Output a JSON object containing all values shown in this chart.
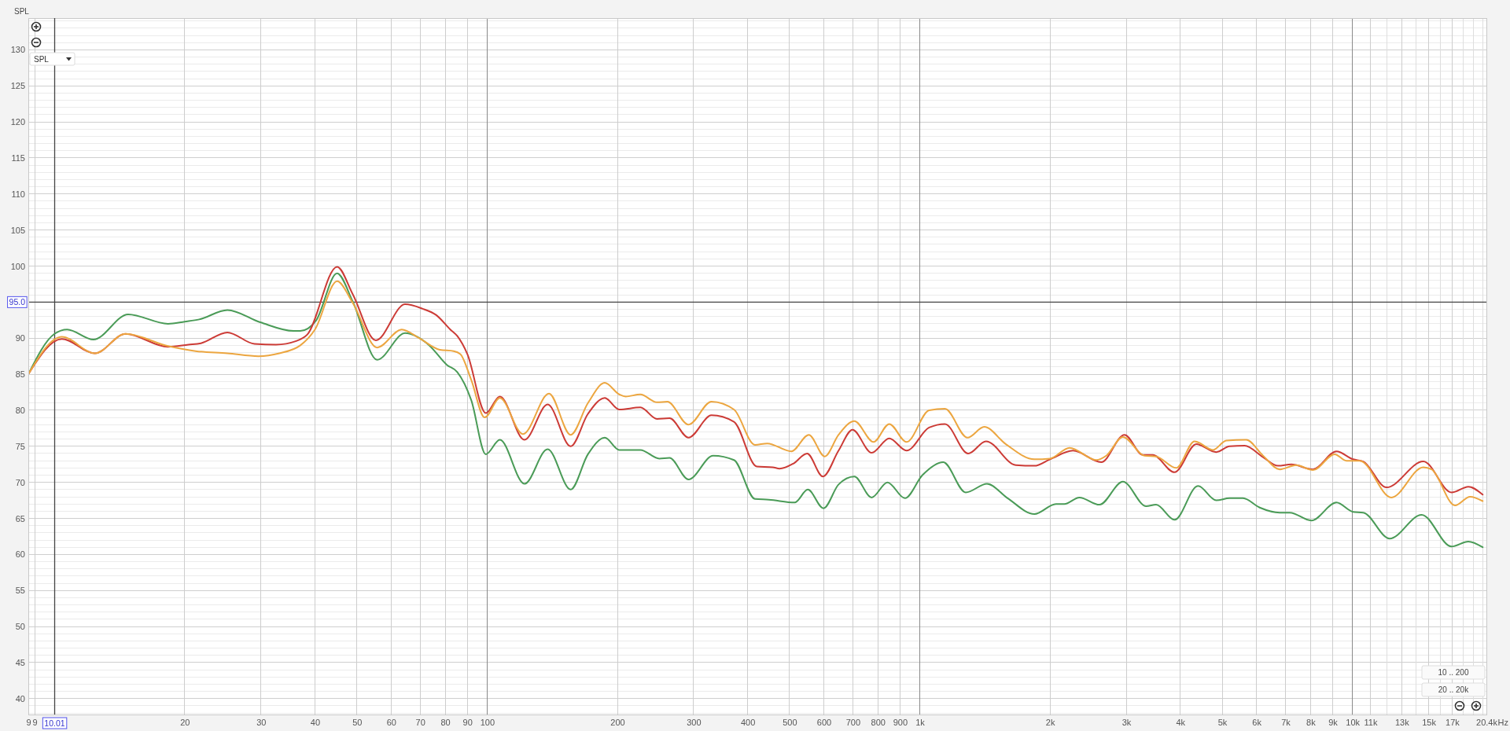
{
  "chart_data": {
    "type": "line",
    "ylabel": "SPL",
    "xlabel": "Hz",
    "log": "x",
    "grid": true,
    "xlim": [
      8.7,
      20400
    ],
    "ylim": [
      37.8,
      134.4
    ],
    "xticks": [
      {
        "value": 8.7,
        "label": "9"
      },
      9,
      20,
      30,
      40,
      50,
      60,
      70,
      80,
      90,
      100,
      200,
      300,
      400,
      500,
      600,
      700,
      800,
      900,
      {
        "value": 1000,
        "label": "1k"
      },
      {
        "value": 2000,
        "label": "2k"
      },
      {
        "value": 3000,
        "label": "3k"
      },
      {
        "value": 4000,
        "label": "4k"
      },
      {
        "value": 5000,
        "label": "5k"
      },
      {
        "value": 6000,
        "label": "6k"
      },
      {
        "value": 7000,
        "label": "7k"
      },
      {
        "value": 8000,
        "label": "8k"
      },
      {
        "value": 9000,
        "label": "9k"
      },
      {
        "value": 10000,
        "label": "10k"
      },
      {
        "value": 11000,
        "label": "11k"
      },
      {
        "value": 12000,
        "label": null
      },
      {
        "value": 13000,
        "label": "13k"
      },
      {
        "value": 14000,
        "label": null
      },
      {
        "value": 15000,
        "label": "15k"
      },
      {
        "value": 16000,
        "label": null
      },
      {
        "value": 17000,
        "label": "17k"
      },
      {
        "value": 18000,
        "label": null
      },
      {
        "value": 19000,
        "label": null
      },
      {
        "value": 20000,
        "label": null
      },
      {
        "value": 20400,
        "label": "20.4k"
      }
    ],
    "yticks": [
      {
        "value": 38,
        "label": null
      },
      {
        "value": 39,
        "label": null
      },
      40,
      {
        "value": 41,
        "label": null
      },
      {
        "value": 42,
        "label": null
      },
      {
        "value": 43,
        "label": null
      },
      {
        "value": 44,
        "label": null
      },
      45,
      {
        "value": 46,
        "label": null
      },
      {
        "value": 47,
        "label": null
      },
      {
        "value": 48,
        "label": null
      },
      {
        "value": 49,
        "label": null
      },
      50,
      {
        "value": 51,
        "label": null
      },
      {
        "value": 52,
        "label": null
      },
      {
        "value": 53,
        "label": null
      },
      {
        "value": 54,
        "label": null
      },
      55,
      {
        "value": 56,
        "label": null
      },
      {
        "value": 57,
        "label": null
      },
      {
        "value": 58,
        "label": null
      },
      {
        "value": 59,
        "label": null
      },
      60,
      {
        "value": 61,
        "label": null
      },
      {
        "value": 62,
        "label": null
      },
      {
        "value": 63,
        "label": null
      },
      {
        "value": 64,
        "label": null
      },
      65,
      {
        "value": 66,
        "label": null
      },
      {
        "value": 67,
        "label": null
      },
      {
        "value": 68,
        "label": null
      },
      {
        "value": 69,
        "label": null
      },
      70,
      {
        "value": 71,
        "label": null
      },
      {
        "value": 72,
        "label": null
      },
      {
        "value": 73,
        "label": null
      },
      {
        "value": 74,
        "label": null
      },
      75,
      {
        "value": 76,
        "label": null
      },
      {
        "value": 77,
        "label": null
      },
      {
        "value": 78,
        "label": null
      },
      {
        "value": 79,
        "label": null
      },
      80,
      {
        "value": 81,
        "label": null
      },
      {
        "value": 82,
        "label": null
      },
      {
        "value": 83,
        "label": null
      },
      {
        "value": 84,
        "label": null
      },
      85,
      {
        "value": 86,
        "label": null
      },
      {
        "value": 87,
        "label": null
      },
      {
        "value": 88,
        "label": null
      },
      {
        "value": 89,
        "label": null
      },
      90,
      {
        "value": 91,
        "label": null
      },
      {
        "value": 92,
        "label": null
      },
      {
        "value": 93,
        "label": null
      },
      {
        "value": 94,
        "label": null
      },
      {
        "value": 96,
        "label": null
      },
      {
        "value": 97,
        "label": null
      },
      {
        "value": 98,
        "label": null
      },
      {
        "value": 99,
        "label": null
      },
      100,
      {
        "value": 101,
        "label": null
      },
      {
        "value": 102,
        "label": null
      },
      {
        "value": 103,
        "label": null
      },
      {
        "value": 104,
        "label": null
      },
      105,
      {
        "value": 106,
        "label": null
      },
      {
        "value": 107,
        "label": null
      },
      {
        "value": 108,
        "label": null
      },
      {
        "value": 109,
        "label": null
      },
      110,
      {
        "value": 111,
        "label": null
      },
      {
        "value": 112,
        "label": null
      },
      {
        "value": 113,
        "label": null
      },
      {
        "value": 114,
        "label": null
      },
      115,
      {
        "value": 116,
        "label": null
      },
      {
        "value": 117,
        "label": null
      },
      {
        "value": 118,
        "label": null
      },
      {
        "value": 119,
        "label": null
      },
      120,
      {
        "value": 121,
        "label": null
      },
      {
        "value": 122,
        "label": null
      },
      {
        "value": 123,
        "label": null
      },
      {
        "value": 124,
        "label": null
      },
      125,
      {
        "value": 126,
        "label": null
      },
      {
        "value": 127,
        "label": null
      },
      {
        "value": 128,
        "label": null
      },
      {
        "value": 129,
        "label": null
      },
      130,
      {
        "value": 131,
        "label": null
      },
      {
        "value": 132,
        "label": null
      },
      {
        "value": 133,
        "label": null
      },
      {
        "value": 134,
        "label": null
      }
    ],
    "ref_lines": [
      {
        "axis": "x",
        "value": 10.01,
        "label": "10.01"
      },
      {
        "axis": "y",
        "value": 95.0,
        "label": "95.0"
      }
    ],
    "annotations": [
      "SPL",
      "10 .. 200",
      "20 .. 20k"
    ],
    "series": [
      {
        "color": "#4a9b57",
        "x": [
          8.7,
          10,
          10.7,
          12.3,
          14.8,
          18.3,
          20,
          21.6,
          25.1,
          29.9,
          35.7,
          37,
          40.2,
          45,
          48.9,
          55.7,
          64.6,
          73.5,
          80.7,
          85.3,
          91.9,
          99.3,
          107,
          122,
          138,
          156,
          171,
          187,
          202,
          226,
          250,
          264,
          292,
          333,
          372,
          416,
          448,
          514,
          551,
          599,
          649,
          706,
          774,
          842,
          924,
          1014,
          1133,
          1277,
          1430,
          1596,
          1840,
          2064,
          2158,
          2338,
          2602,
          2947,
          3337,
          3517,
          3879,
          4395,
          4845,
          5199,
          5585,
          6105,
          6792,
          7165,
          8035,
          9184,
          10035,
          10590,
          12190,
          14450,
          16950,
          18530,
          20000
        ],
        "values": [
          85.0,
          90.6,
          91.2,
          89.8,
          93.3,
          92.0,
          92.3,
          92.6,
          93.9,
          92.2,
          91.0,
          91.0,
          92.4,
          99.0,
          95.1,
          87.0,
          90.7,
          89.0,
          86.3,
          85.3,
          81.4,
          73.9,
          75.9,
          69.8,
          74.6,
          69.0,
          73.9,
          76.2,
          74.5,
          74.5,
          73.3,
          73.4,
          70.4,
          73.7,
          73.1,
          67.7,
          67.6,
          67.2,
          69.0,
          66.4,
          69.7,
          70.8,
          67.9,
          70.0,
          67.8,
          71.0,
          72.8,
          68.6,
          69.8,
          67.8,
          65.6,
          67.0,
          67.0,
          67.9,
          66.9,
          70.1,
          66.7,
          66.9,
          64.8,
          69.5,
          67.5,
          67.8,
          67.8,
          66.5,
          65.8,
          65.8,
          64.7,
          67.2,
          65.9,
          65.8,
          62.2,
          65.5,
          61.1,
          61.8,
          61.0
        ]
      },
      {
        "color": "#cc3b36",
        "x": [
          8.7,
          10.4,
          12.4,
          14.6,
          18.3,
          20.4,
          21.8,
          25.1,
          29,
          32.5,
          36.2,
          38.4,
          45,
          48.9,
          55.3,
          64.6,
          70.8,
          76.3,
          82.2,
          85.3,
          90,
          99.3,
          107,
          122,
          138,
          156,
          171,
          187,
          202,
          226,
          247,
          264,
          292,
          330,
          372,
          420,
          457,
          474,
          510,
          549,
          597,
          649,
          699,
          774,
          850,
          932,
          1051,
          1143,
          1294,
          1422,
          1667,
          1840,
          2000,
          2260,
          2626,
          2973,
          3279,
          3456,
          3879,
          4357,
          4845,
          5199,
          5634,
          6214,
          6728,
          7222,
          8108,
          9184,
          10035,
          10590,
          11990,
          14580,
          16950,
          18530,
          20000
        ],
        "values": [
          85.0,
          89.9,
          87.9,
          90.6,
          88.8,
          89.1,
          89.3,
          90.8,
          89.2,
          89.1,
          89.6,
          90.5,
          99.9,
          96.1,
          89.7,
          94.7,
          94.1,
          93.2,
          91.2,
          90.3,
          87.8,
          79.6,
          81.9,
          75.9,
          80.8,
          75.0,
          79.5,
          81.7,
          80.1,
          80.4,
          78.8,
          78.9,
          76.2,
          79.3,
          78.4,
          72.2,
          72.1,
          71.9,
          72.6,
          74.0,
          70.8,
          74.4,
          77.3,
          74.1,
          76.1,
          74.4,
          77.6,
          78.1,
          74.0,
          75.7,
          72.4,
          72.3,
          73.2,
          74.4,
          72.8,
          76.6,
          73.8,
          73.8,
          71.4,
          75.3,
          74.2,
          75.0,
          75.1,
          73.5,
          72.3,
          72.5,
          71.8,
          74.3,
          73.2,
          72.9,
          69.3,
          72.9,
          68.6,
          69.4,
          68.3
        ]
      },
      {
        "color": "#eca640",
        "x": [
          8.7,
          10.4,
          12.4,
          14.6,
          18.3,
          21.2,
          25.1,
          29.6,
          33.1,
          37,
          40,
          45,
          48.9,
          55.7,
          63.5,
          69.6,
          77.7,
          83.7,
          86.7,
          91.9,
          98.7,
          107,
          121,
          139,
          156,
          171,
          187,
          202,
          209,
          226,
          247,
          261,
          292,
          330,
          372,
          416,
          444,
          505,
          554,
          603,
          649,
          706,
          782,
          850,
          932,
          1051,
          1143,
          1289,
          1409,
          1581,
          1840,
          2000,
          2219,
          2558,
          2698,
          2947,
          3306,
          3517,
          3915,
          4316,
          4762,
          5110,
          5683,
          6214,
          6792,
          7417,
          8108,
          9098,
          9686,
          10398,
          12300,
          14580,
          15240,
          17260,
          18700,
          20000
        ],
        "values": [
          85.0,
          90.2,
          87.9,
          90.6,
          88.9,
          88.2,
          87.9,
          87.5,
          87.9,
          89.0,
          91.2,
          97.9,
          94.9,
          88.7,
          91.2,
          90.0,
          88.4,
          88.2,
          87.8,
          84.2,
          79.0,
          81.7,
          76.7,
          82.3,
          76.6,
          81.0,
          83.8,
          82.2,
          81.9,
          82.2,
          81.1,
          81.2,
          78.0,
          81.2,
          80.1,
          75.2,
          75.4,
          74.3,
          76.6,
          73.6,
          76.6,
          78.5,
          75.6,
          78.1,
          75.6,
          80.0,
          80.2,
          76.2,
          77.7,
          75.3,
          73.2,
          73.3,
          74.8,
          73.1,
          73.7,
          76.3,
          73.7,
          73.6,
          72.0,
          75.7,
          74.5,
          75.8,
          75.9,
          73.7,
          71.8,
          72.4,
          71.7,
          73.9,
          73.0,
          73.0,
          67.9,
          72.1,
          71.8,
          66.8,
          68.0,
          67.4
        ]
      }
    ]
  }
}
